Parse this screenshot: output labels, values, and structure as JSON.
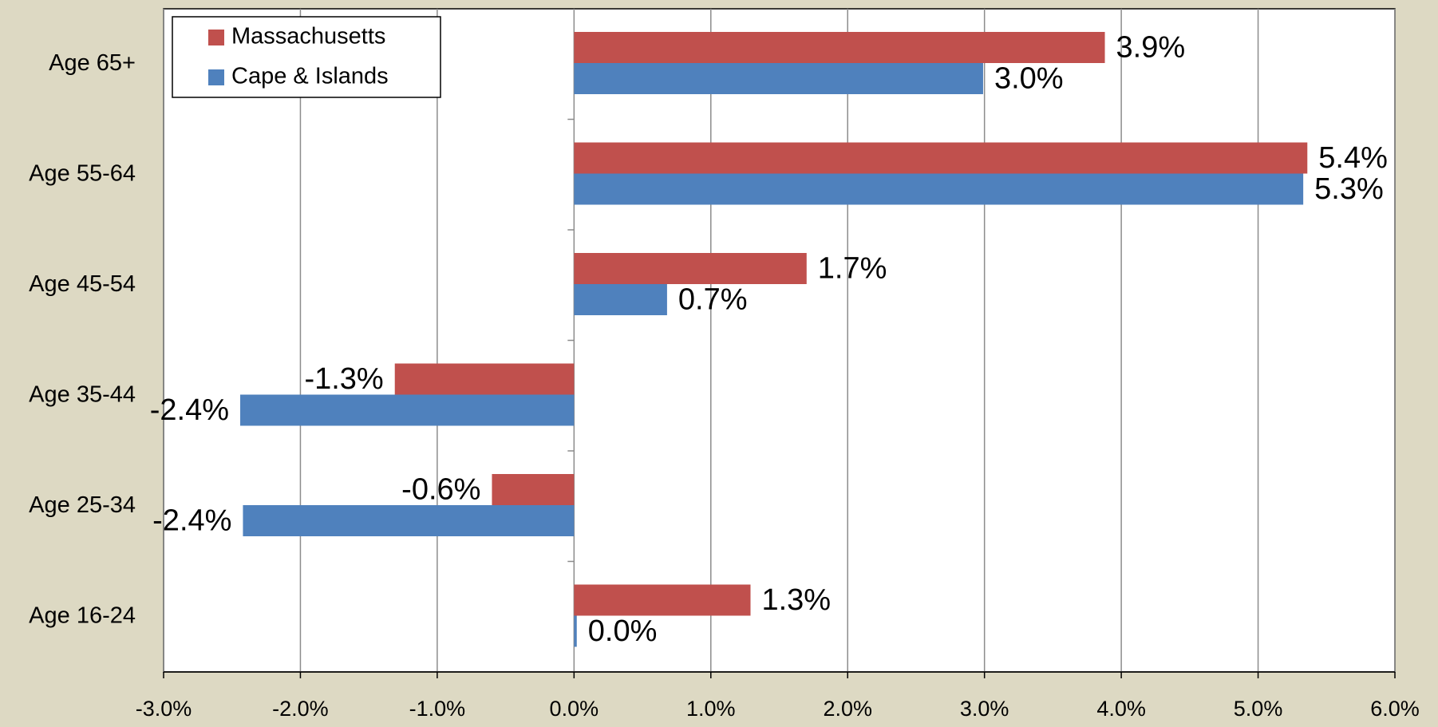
{
  "chart_data": {
    "type": "hbar",
    "categories": [
      "Age 65+",
      "Age 55-64",
      "Age 45-54",
      "Age 35-44",
      "Age 25-34",
      "Age 16-24"
    ],
    "series": [
      {
        "name": "Massachusetts",
        "color": "#c0504d",
        "values": [
          3.88,
          5.36,
          1.7,
          -1.31,
          -0.6,
          1.29
        ],
        "value_labels": [
          "3.9%",
          "5.4%",
          "1.7%",
          "-1.3%",
          "-0.6%",
          "1.3%"
        ]
      },
      {
        "name": "Cape & Islands",
        "color": "#4f81bd",
        "values": [
          2.99,
          5.33,
          0.68,
          -2.44,
          -2.42,
          0.02
        ],
        "value_labels": [
          "3.0%",
          "5.3%",
          "0.7%",
          "-2.4%",
          "-2.4%",
          "0.0%"
        ]
      }
    ],
    "xlim": [
      -3,
      6
    ],
    "xticks": [
      {
        "value": -3,
        "label": "-3.0%"
      },
      {
        "value": -2,
        "label": "-2.0%"
      },
      {
        "value": -1,
        "label": "-1.0%"
      },
      {
        "value": 0,
        "label": "0.0%"
      },
      {
        "value": 1,
        "label": "1.0%"
      },
      {
        "value": 2,
        "label": "2.0%"
      },
      {
        "value": 3,
        "label": "3.0%"
      },
      {
        "value": 4,
        "label": "4.0%"
      },
      {
        "value": 5,
        "label": "5.0%"
      },
      {
        "value": 6,
        "label": "6.0%"
      }
    ],
    "grid": true,
    "legend": "upper-left"
  }
}
